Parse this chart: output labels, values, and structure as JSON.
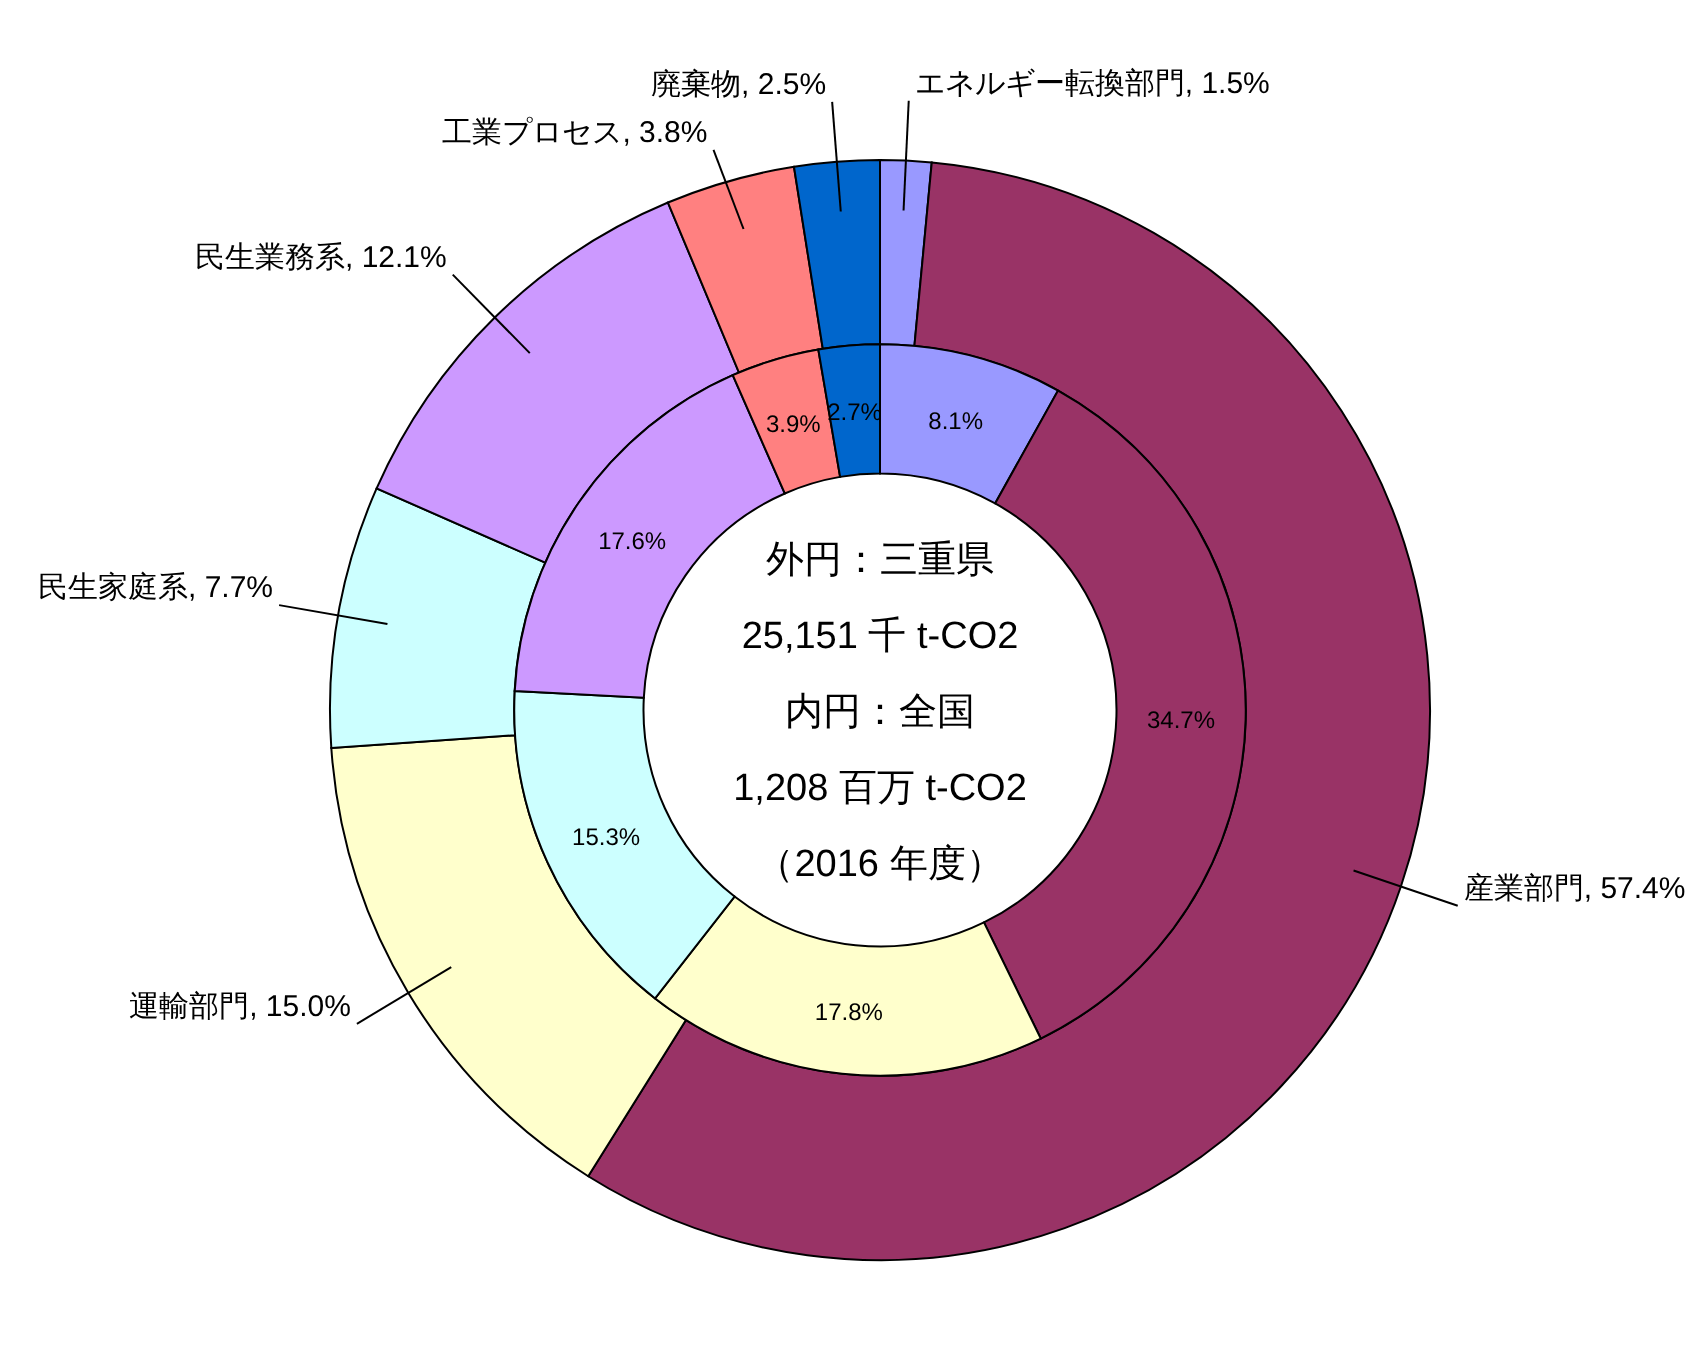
{
  "chart_data": {
    "type": "donut",
    "categories": [
      "エネルギー転換部門",
      "産業部門",
      "運輸部門",
      "民生家庭系",
      "民生業務系",
      "工業プロセス",
      "廃棄物"
    ],
    "colors": [
      "#9999ff",
      "#993366",
      "#ffffcc",
      "#ccffff",
      "#cc99ff",
      "#ff8080",
      "#0066cc"
    ],
    "series": [
      {
        "values": [
          1.5,
          57.4,
          15.0,
          7.7,
          12.1,
          3.8,
          2.5
        ],
        "value_labels": [
          "1.5%",
          "57.4%",
          "15.0%",
          "7.7%",
          "12.1%",
          "3.8%",
          "2.5%"
        ]
      },
      {
        "values": [
          8.1,
          34.7,
          17.8,
          15.3,
          17.6,
          3.9,
          2.7
        ],
        "value_labels": [
          "8.1%",
          "34.7%",
          "17.8%",
          "15.3%",
          "17.6%",
          "3.9%",
          "2.7%"
        ]
      }
    ],
    "annotations": [
      "外円：三重県",
      "25,151 千 t-CO2",
      "内円：全国",
      "1,208 百万 t-CO2",
      "（2016 年度）"
    ]
  }
}
